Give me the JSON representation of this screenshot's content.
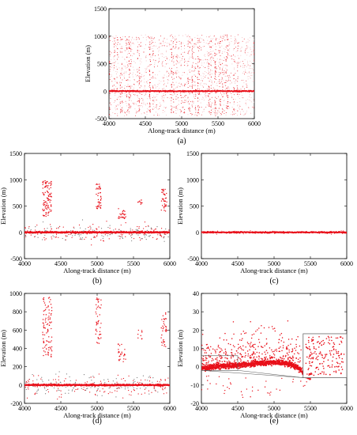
{
  "chart_data": [
    {
      "panel": "(a)",
      "type": "scatter",
      "xlabel": "Along-track distance (m)",
      "ylabel": "Elevation (m)",
      "xlim": [
        4000,
        6000
      ],
      "ylim": [
        -500,
        1500
      ],
      "xticks": [
        4000,
        4500,
        5000,
        5500,
        6000
      ],
      "yticks": [
        -500,
        0,
        500,
        1000,
        1500
      ],
      "description_values": {
        "ground_elevation": 0,
        "noise_band": [
          -500,
          1000
        ]
      }
    },
    {
      "panel": "(b)",
      "type": "scatter",
      "xlabel": "Along-track distance (m)",
      "ylabel": "Elevation (m)",
      "xlim": [
        4000,
        6000
      ],
      "ylim": [
        -500,
        1500
      ],
      "xticks": [
        4000,
        4500,
        5000,
        5500,
        6000
      ],
      "yticks": [
        -500,
        0,
        500,
        1000,
        1500
      ],
      "clusters": [
        {
          "x": [
            4250,
            4380
          ],
          "y": [
            300,
            980
          ]
        },
        {
          "x": [
            4980,
            5060
          ],
          "y": [
            450,
            950
          ]
        },
        {
          "x": [
            5280,
            5400
          ],
          "y": [
            250,
            450
          ]
        },
        {
          "x": [
            5550,
            5620
          ],
          "y": [
            500,
            620
          ]
        },
        {
          "x": [
            5880,
            5960
          ],
          "y": [
            400,
            820
          ]
        }
      ]
    },
    {
      "panel": "(c)",
      "type": "scatter",
      "xlabel": "Along-track distance (m)",
      "ylabel": "Elevation (m)",
      "xlim": [
        4000,
        6000
      ],
      "ylim": [
        -500,
        1500
      ],
      "xticks": [
        4000,
        4500,
        5000,
        5500,
        6000
      ],
      "yticks": [
        -500,
        0,
        500,
        1000,
        1500
      ],
      "description_values": {
        "ground_elevation": 0
      }
    },
    {
      "panel": "(d)",
      "type": "scatter",
      "xlabel": "Along-track distance (m)",
      "ylabel": "Elevation (m)",
      "xlim": [
        4000,
        6000
      ],
      "ylim": [
        -200,
        1000
      ],
      "xticks": [
        4000,
        4500,
        5000,
        5500,
        6000
      ],
      "yticks": [
        -200,
        0,
        200,
        400,
        600,
        800,
        1000
      ],
      "clusters": [
        {
          "x": [
            4250,
            4380
          ],
          "y": [
            300,
            960
          ]
        },
        {
          "x": [
            4980,
            5060
          ],
          "y": [
            450,
            950
          ]
        },
        {
          "x": [
            5280,
            5400
          ],
          "y": [
            250,
            450
          ]
        },
        {
          "x": [
            5550,
            5620
          ],
          "y": [
            500,
            620
          ]
        },
        {
          "x": [
            5880,
            5960
          ],
          "y": [
            400,
            820
          ]
        }
      ]
    },
    {
      "panel": "(e)",
      "type": "scatter",
      "xlabel": "Along-track distance (m)",
      "ylabel": "Elevation (m)",
      "xlim": [
        4000,
        6000
      ],
      "ylim": [
        -20,
        40
      ],
      "xticks": [
        4000,
        4500,
        5000,
        5500,
        6000
      ],
      "yticks": [
        -20,
        -10,
        0,
        10,
        20,
        30,
        40
      ],
      "ground_profile": {
        "x": [
          4000,
          4200,
          4400,
          4600,
          4800,
          5000,
          5200,
          5300,
          5400,
          5450,
          5500
        ],
        "y": [
          -1,
          0,
          0.5,
          1,
          2,
          2.5,
          1.5,
          0,
          -3,
          -5,
          -6
        ]
      },
      "zoom_boxes": [
        {
          "x": [
            4000,
            4500
          ],
          "y": [
            -2,
            6
          ]
        },
        {
          "x": [
            5400,
            5500
          ],
          "y": [
            -6,
            -2
          ]
        }
      ]
    }
  ],
  "panel_labels": [
    "(a)",
    "(b)",
    "(c)",
    "(d)",
    "(e)"
  ],
  "colors": {
    "points": "#e8101a",
    "axes": "#000000",
    "inset_border": "#555555"
  }
}
